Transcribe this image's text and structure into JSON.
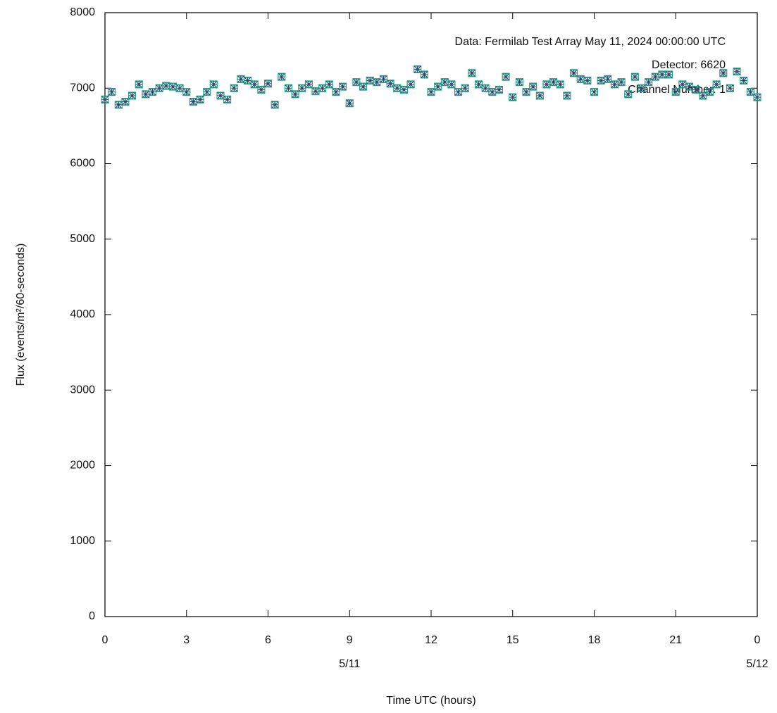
{
  "chart_data": {
    "type": "errorbar",
    "xlabel": "Time UTC (hours)",
    "ylabel": "Flux (events/m²/60-seconds)",
    "annotations": [
      "Data: Fermilab Test Array May 11, 2024 00:00:00 UTC",
      "Detector: 6620",
      "Channel Number: 1"
    ],
    "date_labels": [
      {
        "x": 9,
        "label": "5/11"
      },
      {
        "x": 24,
        "label": "5/12"
      }
    ],
    "color": "#1f9e89",
    "marker_color": "#2b4a6b",
    "error": 40,
    "xlim": [
      0,
      24
    ],
    "xticks": [
      0,
      3,
      6,
      9,
      12,
      15,
      18,
      21,
      {
        "value": 24,
        "label": "0"
      }
    ],
    "ylim": [
      0,
      8000
    ],
    "yticks": [
      0,
      1000,
      2000,
      3000,
      4000,
      5000,
      6000,
      7000,
      8000
    ],
    "grid": false,
    "x": [
      0,
      0.25,
      0.5,
      0.75,
      1,
      1.25,
      1.5,
      1.75,
      2,
      2.25,
      2.5,
      2.75,
      3,
      3.25,
      3.5,
      3.75,
      4,
      4.25,
      4.5,
      4.75,
      5,
      5.25,
      5.5,
      5.75,
      6,
      6.25,
      6.5,
      6.75,
      7,
      7.25,
      7.5,
      7.75,
      8,
      8.25,
      8.5,
      8.75,
      9,
      9.25,
      9.5,
      9.75,
      10,
      10.25,
      10.5,
      10.75,
      11,
      11.25,
      11.5,
      11.75,
      12,
      12.25,
      12.5,
      12.75,
      13,
      13.25,
      13.5,
      13.75,
      14,
      14.25,
      14.5,
      14.75,
      15,
      15.25,
      15.5,
      15.75,
      16,
      16.25,
      16.5,
      16.75,
      17,
      17.25,
      17.5,
      17.75,
      18,
      18.25,
      18.5,
      18.75,
      19,
      19.25,
      19.5,
      19.75,
      20,
      20.25,
      20.5,
      20.75,
      21,
      21.25,
      21.5,
      21.75,
      22,
      22.25,
      22.5,
      22.75,
      23,
      23.25,
      23.5,
      23.75,
      24
    ],
    "values": [
      6850,
      6950,
      6780,
      6820,
      6900,
      7050,
      6920,
      6950,
      7000,
      7030,
      7020,
      7000,
      6950,
      6820,
      6850,
      6950,
      7050,
      6900,
      6850,
      7000,
      7120,
      7100,
      7050,
      6980,
      7060,
      6780,
      7150,
      7000,
      6920,
      7000,
      7050,
      6960,
      7000,
      7050,
      6950,
      7020,
      6800,
      7080,
      7020,
      7100,
      7080,
      7120,
      7060,
      7000,
      6980,
      7050,
      7250,
      7180,
      6950,
      7020,
      7080,
      7050,
      6950,
      7000,
      7200,
      7050,
      7000,
      6950,
      6980,
      7150,
      6880,
      7080,
      6950,
      7020,
      6900,
      7050,
      7080,
      7050,
      6900,
      7200,
      7120,
      7100,
      6950,
      7100,
      7120,
      7050,
      7080,
      6920,
      7150,
      7000,
      7080,
      7150,
      7180,
      7180,
      6950,
      7050,
      7020,
      6980,
      6900,
      6950,
      7050,
      7200,
      7000,
      7220,
      7100,
      6950,
      6880
    ]
  }
}
